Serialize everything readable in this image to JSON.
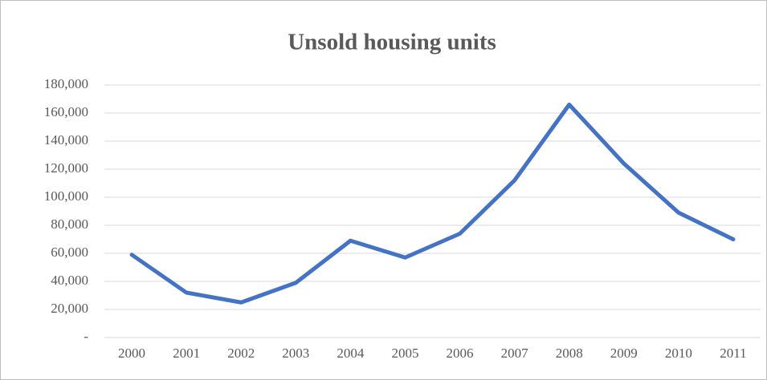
{
  "chart_data": {
    "type": "line",
    "title": "Unsold housing units",
    "categories": [
      "2000",
      "2001",
      "2002",
      "2003",
      "2004",
      "2005",
      "2006",
      "2007",
      "2008",
      "2009",
      "2010",
      "2011"
    ],
    "series": [
      {
        "name": "Unsold housing units",
        "color": "#4472c4",
        "values": [
          59000,
          32000,
          25000,
          39000,
          69000,
          57000,
          74000,
          112000,
          166000,
          124000,
          89000,
          70000
        ]
      }
    ],
    "ylim": [
      0,
      180000
    ],
    "yticks": [
      {
        "value": 0,
        "label": "-"
      },
      {
        "value": 20000,
        "label": "20,000"
      },
      {
        "value": 40000,
        "label": "40,000"
      },
      {
        "value": 60000,
        "label": "60,000"
      },
      {
        "value": 80000,
        "label": "80,000"
      },
      {
        "value": 100000,
        "label": "100,000"
      },
      {
        "value": 120000,
        "label": "120,000"
      },
      {
        "value": 140000,
        "label": "140,000"
      },
      {
        "value": 160000,
        "label": "160,000"
      },
      {
        "value": 180000,
        "label": "180,000"
      }
    ],
    "grid": true
  }
}
